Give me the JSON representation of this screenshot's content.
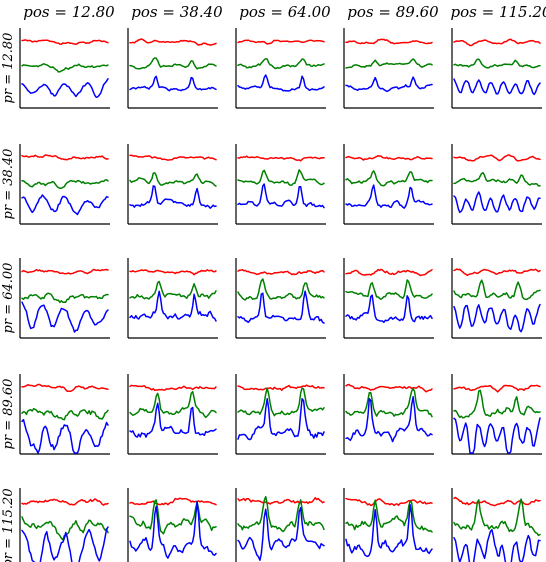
{
  "chart_data": {
    "type": "line",
    "grid_layout": "5x5 small multiples",
    "column_header_label": "pos",
    "row_header_label": "pr",
    "columns": [
      "pos = 12.80",
      "pos = 38.40",
      "pos = 64.00",
      "pos = 89.60",
      "pos = 115.20"
    ],
    "rows": [
      "pr = 12.80",
      "pr = 38.40",
      "pr = 64.00",
      "pr = 89.60",
      "pr = 115.20"
    ],
    "column_values": [
      12.8,
      38.4,
      64.0,
      89.6,
      115.2
    ],
    "row_values": [
      12.8,
      38.4,
      64.0,
      89.6,
      115.2
    ],
    "series": [
      {
        "color": "#ff0000",
        "position": "top"
      },
      {
        "color": "#008000",
        "position": "middle"
      },
      {
        "color": "#0000ff",
        "position": "bottom"
      }
    ],
    "axes": {
      "ticks": false,
      "tick_labels": false,
      "spines": [
        "left",
        "bottom"
      ],
      "grid": false
    },
    "legend": "none"
  }
}
